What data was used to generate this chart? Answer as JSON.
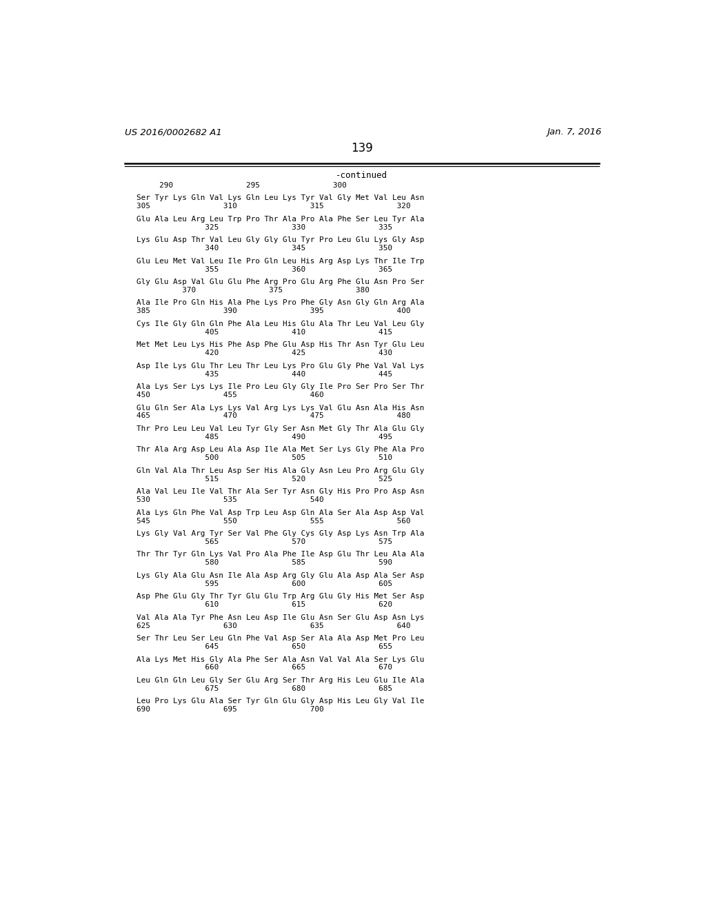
{
  "page_number": "139",
  "patent_number": "US 2016/0002682 A1",
  "patent_date": "Jan. 7, 2016",
  "continued_label": "-continued",
  "background_color": "#ffffff",
  "text_color": "#000000",
  "lines": [
    "     290                295                300",
    "",
    "Ser Tyr Lys Gln Val Lys Gln Leu Lys Tyr Val Gly Met Val Leu Asn",
    "305                310                315                320",
    "",
    "Glu Ala Leu Arg Leu Trp Pro Thr Ala Pro Ala Phe Ser Leu Tyr Ala",
    "               325                330                335",
    "",
    "Lys Glu Asp Thr Val Leu Gly Gly Glu Tyr Pro Leu Glu Lys Gly Asp",
    "               340                345                350",
    "",
    "Glu Leu Met Val Leu Ile Pro Gln Leu His Arg Asp Lys Thr Ile Trp",
    "               355                360                365",
    "",
    "Gly Glu Asp Val Glu Glu Phe Arg Pro Glu Arg Phe Glu Asn Pro Ser",
    "          370                375                380",
    "",
    "Ala Ile Pro Gln His Ala Phe Lys Pro Phe Gly Asn Gly Gln Arg Ala",
    "385                390                395                400",
    "",
    "Cys Ile Gly Gln Gln Phe Ala Leu His Glu Ala Thr Leu Val Leu Gly",
    "               405                410                415",
    "",
    "Met Met Leu Lys His Phe Asp Phe Glu Asp His Thr Asn Tyr Glu Leu",
    "               420                425                430",
    "",
    "Asp Ile Lys Glu Thr Leu Thr Leu Lys Pro Glu Gly Phe Val Val Lys",
    "               435                440                445",
    "",
    "Ala Lys Ser Lys Lys Ile Pro Leu Gly Gly Ile Pro Ser Pro Ser Thr",
    "450                455                460",
    "",
    "Glu Gln Ser Ala Lys Lys Val Arg Lys Lys Val Glu Asn Ala His Asn",
    "465                470                475                480",
    "",
    "Thr Pro Leu Leu Val Leu Tyr Gly Ser Asn Met Gly Thr Ala Glu Gly",
    "               485                490                495",
    "",
    "Thr Ala Arg Asp Leu Ala Asp Ile Ala Met Ser Lys Gly Phe Ala Pro",
    "               500                505                510",
    "",
    "Gln Val Ala Thr Leu Asp Ser His Ala Gly Asn Leu Pro Arg Glu Gly",
    "               515                520                525",
    "",
    "Ala Val Leu Ile Val Thr Ala Ser Tyr Asn Gly His Pro Pro Asp Asn",
    "530                535                540",
    "",
    "Ala Lys Gln Phe Val Asp Trp Leu Asp Gln Ala Ser Ala Asp Asp Val",
    "545                550                555                560",
    "",
    "Lys Gly Val Arg Tyr Ser Val Phe Gly Cys Gly Asp Lys Asn Trp Ala",
    "               565                570                575",
    "",
    "Thr Thr Tyr Gln Lys Val Pro Ala Phe Ile Asp Glu Thr Leu Ala Ala",
    "               580                585                590",
    "",
    "Lys Gly Ala Glu Asn Ile Ala Asp Arg Gly Glu Ala Asp Ala Ser Asp",
    "               595                600                605",
    "",
    "Asp Phe Glu Gly Thr Tyr Glu Glu Trp Arg Glu Gly His Met Ser Asp",
    "               610                615                620",
    "",
    "Val Ala Ala Tyr Phe Asn Leu Asp Ile Glu Asn Ser Glu Asp Asn Lys",
    "625                630                635                640",
    "",
    "Ser Thr Leu Ser Leu Gln Phe Val Asp Ser Ala Ala Asp Met Pro Leu",
    "               645                650                655",
    "",
    "Ala Lys Met His Gly Ala Phe Ser Ala Asn Val Val Ala Ser Lys Glu",
    "               660                665                670",
    "",
    "Leu Gln Gln Leu Gly Ser Glu Arg Ser Thr Arg His Leu Glu Ile Ala",
    "               675                680                685",
    "",
    "Leu Pro Lys Glu Ala Ser Tyr Gln Glu Gly Asp His Leu Gly Val Ile",
    "690                695                700"
  ]
}
